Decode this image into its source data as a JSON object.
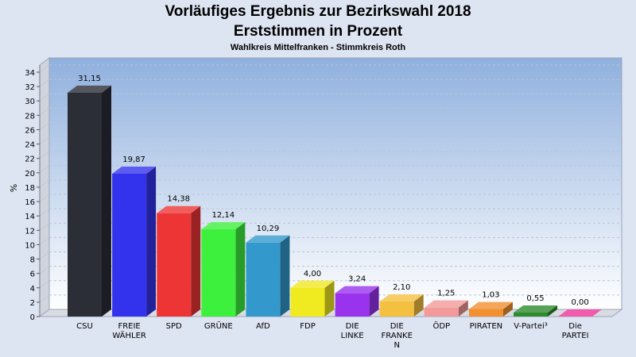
{
  "chart_data": {
    "type": "bar",
    "title": "Vorläufiges Ergebnis zur Bezirkswahl 2018",
    "subtitle": "Erststimmen in Prozent",
    "caption": "Wahlkreis Mittelfranken - Stimmkreis Roth",
    "ylabel": "%",
    "ylim": [
      0,
      34
    ],
    "yticks": [
      0,
      2,
      4,
      6,
      8,
      10,
      12,
      14,
      16,
      18,
      20,
      22,
      24,
      26,
      28,
      30,
      32,
      34
    ],
    "grid": true,
    "categories": [
      [
        "CSU"
      ],
      [
        "FREIE",
        "WÄHLER"
      ],
      [
        "SPD"
      ],
      [
        "GRÜNE"
      ],
      [
        "AfD"
      ],
      [
        "FDP"
      ],
      [
        "DIE",
        "LINKE"
      ],
      [
        "DIE",
        "FRANKE",
        "N"
      ],
      [
        "ÖDP"
      ],
      [
        "PIRATEN"
      ],
      [
        "V-Partei³"
      ],
      [
        "Die",
        "PARTEI"
      ]
    ],
    "values": [
      31.15,
      19.87,
      14.38,
      12.14,
      10.29,
      4.0,
      3.24,
      2.1,
      1.25,
      1.03,
      0.55,
      0.0
    ],
    "value_labels": [
      "31,15",
      "19,87",
      "14,38",
      "12,14",
      "10,29",
      "4,00",
      "3,24",
      "2,10",
      "1,25",
      "1,03",
      "0,55",
      "0,00"
    ],
    "colors": [
      "#2b2d37",
      "#3333ee",
      "#ee3535",
      "#3ef03e",
      "#3399cc",
      "#f0ea20",
      "#9933ee",
      "#f4c040",
      "#f29999",
      "#f29030",
      "#2e8b2e",
      "#ee3399"
    ]
  }
}
